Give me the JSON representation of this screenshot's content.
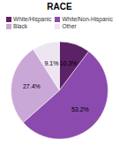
{
  "chart_data": {
    "type": "pie",
    "title": "RACE",
    "categories": [
      "White/Hispanic",
      "White/Non-Hispanic",
      "Black",
      "Other"
    ],
    "values": [
      10.3,
      53.2,
      27.4,
      9.1
    ],
    "value_labels": [
      "10.3%",
      "53.2%",
      "27.4%",
      "9.1%"
    ],
    "data_labels": true,
    "colors": [
      "#5b2266",
      "#8b4aad",
      "#c9a8d8",
      "#ede5f2"
    ],
    "legend": "top"
  }
}
